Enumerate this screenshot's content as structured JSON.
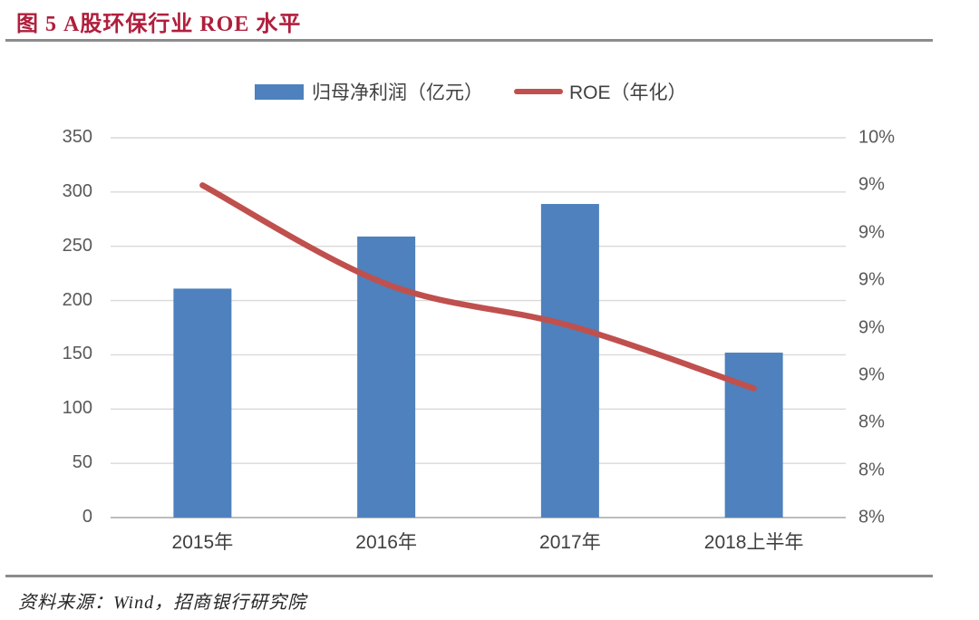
{
  "figure": {
    "title": "图 5 A股环保行业 ROE 水平",
    "source": "资料来源：Wind，招商银行研究院"
  },
  "legend": [
    {
      "label": "归母净利润（亿元）",
      "type": "bar",
      "color": "#4e81bd"
    },
    {
      "label": "ROE（年化）",
      "type": "line",
      "color": "#c0504d"
    }
  ],
  "colors": {
    "title": "#b01e3c",
    "rule": "#8c8c8c",
    "bar": "#4e81bd",
    "line": "#c0504d",
    "grid": "#d9d9d9",
    "axis_line": "#bdbdbd",
    "tick_text": "#595959"
  },
  "chart_data": {
    "type": "bar",
    "subtype": "bar+line combo",
    "categories": [
      "2015年",
      "2016年",
      "2017年",
      "2018上半年"
    ],
    "series": [
      {
        "name": "归母净利润（亿元）",
        "type": "bar",
        "axis": "left",
        "color": "#4e81bd",
        "values": [
          211,
          259,
          289,
          152
        ]
      },
      {
        "name": "ROE（年化）",
        "type": "line",
        "axis": "right",
        "color": "#c0504d",
        "values": [
          9.75,
          9.23,
          9.01,
          8.68
        ],
        "unit": "%"
      }
    ],
    "left_axis": {
      "min": 0,
      "max": 350,
      "step": 50,
      "tick_labels": [
        "350",
        "300",
        "250",
        "200",
        "150",
        "100",
        "50",
        "0"
      ]
    },
    "right_axis": {
      "min": 8,
      "max": 10,
      "tick_count": 9,
      "tick_labels": [
        "10%",
        "9%",
        "9%",
        "9%",
        "9%",
        "9%",
        "8%",
        "8%",
        "8%"
      ]
    },
    "grid": true,
    "legend_position": "top",
    "title": "图 5 A股环保行业 ROE 水平"
  }
}
